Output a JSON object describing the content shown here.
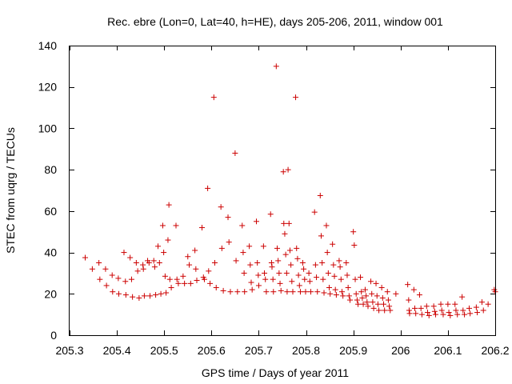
{
  "chart_data": {
    "type": "scatter",
    "title": "Rec. ebre (Lon=0, Lat=40, h=HE), days 205-206, 2011, window 001",
    "xlabel": "GPS time / Days of year 2011",
    "ylabel": "STEC from uqrg / TECUs",
    "xlim": [
      205.3,
      206.2
    ],
    "ylim": [
      0,
      140
    ],
    "xticks": [
      205.3,
      205.4,
      205.5,
      205.6,
      205.7,
      205.8,
      205.9,
      206,
      206.1,
      206.2
    ],
    "xtick_labels": [
      "205.3",
      "205.4",
      "205.5",
      "205.6",
      "205.7",
      "205.8",
      "205.9",
      "206",
      "206.1",
      "206.2"
    ],
    "yticks": [
      0,
      20,
      40,
      60,
      80,
      100,
      120,
      140
    ],
    "ytick_labels": [
      "0",
      "20",
      "40",
      "60",
      "80",
      "100",
      "120",
      "140"
    ],
    "marker": "+",
    "marker_color": "#cc0000",
    "series": [
      {
        "name": "STEC",
        "points": [
          [
            205.333,
            37.5
          ],
          [
            205.348,
            32
          ],
          [
            205.362,
            35
          ],
          [
            205.364,
            27
          ],
          [
            205.376,
            32
          ],
          [
            205.378,
            24
          ],
          [
            205.39,
            29
          ],
          [
            205.391,
            21
          ],
          [
            205.403,
            27.5
          ],
          [
            205.404,
            20
          ],
          [
            205.415,
            40
          ],
          [
            205.418,
            26
          ],
          [
            205.419,
            19.5
          ],
          [
            205.428,
            37.5
          ],
          [
            205.431,
            27
          ],
          [
            205.433,
            18.5
          ],
          [
            205.441,
            35
          ],
          [
            205.444,
            31
          ],
          [
            205.447,
            18
          ],
          [
            205.455,
            34
          ],
          [
            205.456,
            32
          ],
          [
            205.458,
            19
          ],
          [
            205.465,
            36
          ],
          [
            205.468,
            35
          ],
          [
            205.47,
            19
          ],
          [
            205.478,
            36
          ],
          [
            205.48,
            33
          ],
          [
            205.482,
            19.5
          ],
          [
            205.487,
            43
          ],
          [
            205.49,
            35
          ],
          [
            205.493,
            20
          ],
          [
            205.497,
            53
          ],
          [
            205.499,
            40
          ],
          [
            205.502,
            28.5
          ],
          [
            205.504,
            20.5
          ],
          [
            205.508,
            46
          ],
          [
            205.51,
            63
          ],
          [
            205.512,
            27
          ],
          [
            205.515,
            23
          ],
          [
            205.525,
            53
          ],
          [
            205.527,
            27
          ],
          [
            205.53,
            25
          ],
          [
            205.54,
            28.5
          ],
          [
            205.543,
            25
          ],
          [
            205.55,
            38
          ],
          [
            205.553,
            34
          ],
          [
            205.556,
            25
          ],
          [
            205.565,
            41
          ],
          [
            205.567,
            32
          ],
          [
            205.569,
            26.5
          ],
          [
            205.58,
            52
          ],
          [
            205.583,
            28
          ],
          [
            205.585,
            27
          ],
          [
            205.592,
            71
          ],
          [
            205.594,
            31
          ],
          [
            205.597,
            25
          ],
          [
            205.605,
            115
          ],
          [
            205.607,
            35
          ],
          [
            205.61,
            23
          ],
          [
            205.62,
            62
          ],
          [
            205.622,
            42
          ],
          [
            205.625,
            21.5
          ],
          [
            205.635,
            57
          ],
          [
            205.637,
            45
          ],
          [
            205.64,
            21
          ],
          [
            205.65,
            88
          ],
          [
            205.652,
            36
          ],
          [
            205.655,
            21
          ],
          [
            205.665,
            53
          ],
          [
            205.667,
            40
          ],
          [
            205.669,
            30
          ],
          [
            205.67,
            21
          ],
          [
            205.68,
            43
          ],
          [
            205.682,
            34
          ],
          [
            205.684,
            25.5
          ],
          [
            205.686,
            22
          ],
          [
            205.695,
            55
          ],
          [
            205.697,
            35
          ],
          [
            205.699,
            29
          ],
          [
            205.7,
            24
          ],
          [
            205.71,
            43
          ],
          [
            205.712,
            30
          ],
          [
            205.714,
            27
          ],
          [
            205.716,
            21
          ],
          [
            205.725,
            58.5
          ],
          [
            205.727,
            35
          ],
          [
            205.728,
            33
          ],
          [
            205.73,
            27
          ],
          [
            205.731,
            21
          ],
          [
            205.737,
            130
          ],
          [
            205.739,
            42
          ],
          [
            205.741,
            36
          ],
          [
            205.743,
            30
          ],
          [
            205.745,
            25
          ],
          [
            205.747,
            21.5
          ],
          [
            205.752,
            79
          ],
          [
            205.753,
            54
          ],
          [
            205.755,
            49
          ],
          [
            205.757,
            39
          ],
          [
            205.759,
            30
          ],
          [
            205.76,
            21
          ],
          [
            205.762,
            80
          ],
          [
            205.764,
            54
          ],
          [
            205.766,
            41
          ],
          [
            205.768,
            34
          ],
          [
            205.77,
            26
          ],
          [
            205.772,
            21
          ],
          [
            205.778,
            115
          ],
          [
            205.78,
            42
          ],
          [
            205.782,
            37
          ],
          [
            205.784,
            29
          ],
          [
            205.786,
            24
          ],
          [
            205.788,
            21
          ],
          [
            205.793,
            35
          ],
          [
            205.795,
            32
          ],
          [
            205.797,
            27
          ],
          [
            205.799,
            21
          ],
          [
            205.806,
            30
          ],
          [
            205.808,
            26
          ],
          [
            205.81,
            21
          ],
          [
            205.818,
            59.5
          ],
          [
            205.82,
            34
          ],
          [
            205.822,
            28
          ],
          [
            205.824,
            21
          ],
          [
            205.83,
            67.5
          ],
          [
            205.832,
            48
          ],
          [
            205.834,
            35
          ],
          [
            205.836,
            27
          ],
          [
            205.838,
            20.5
          ],
          [
            205.843,
            53
          ],
          [
            205.845,
            40
          ],
          [
            205.847,
            30
          ],
          [
            205.849,
            23
          ],
          [
            205.851,
            20
          ],
          [
            205.856,
            44
          ],
          [
            205.858,
            34
          ],
          [
            205.86,
            28.5
          ],
          [
            205.862,
            22
          ],
          [
            205.864,
            19.5
          ],
          [
            205.87,
            36
          ],
          [
            205.872,
            33
          ],
          [
            205.874,
            27
          ],
          [
            205.876,
            21
          ],
          [
            205.878,
            19
          ],
          [
            205.885,
            35
          ],
          [
            205.887,
            29
          ],
          [
            205.889,
            23
          ],
          [
            205.891,
            19
          ],
          [
            205.893,
            17
          ],
          [
            205.9,
            50
          ],
          [
            205.902,
            43.5
          ],
          [
            205.904,
            27
          ],
          [
            205.906,
            20
          ],
          [
            205.908,
            17
          ],
          [
            205.91,
            15
          ],
          [
            205.915,
            28
          ],
          [
            205.917,
            21
          ],
          [
            205.919,
            18
          ],
          [
            205.921,
            15
          ],
          [
            205.925,
            22
          ],
          [
            205.927,
            19
          ],
          [
            205.929,
            16
          ],
          [
            205.931,
            14
          ],
          [
            205.937,
            26
          ],
          [
            205.939,
            20
          ],
          [
            205.941,
            16
          ],
          [
            205.943,
            13
          ],
          [
            205.948,
            25
          ],
          [
            205.95,
            19
          ],
          [
            205.952,
            15
          ],
          [
            205.954,
            12
          ],
          [
            205.96,
            23
          ],
          [
            205.962,
            18
          ],
          [
            205.964,
            15
          ],
          [
            205.966,
            12
          ],
          [
            205.972,
            21
          ],
          [
            205.974,
            17
          ],
          [
            205.976,
            14
          ],
          [
            205.978,
            12
          ],
          [
            205.99,
            20
          ],
          [
            206.015,
            24.5
          ],
          [
            206.017,
            17
          ],
          [
            206.018,
            12
          ],
          [
            206.019,
            10.5
          ],
          [
            206.028,
            22
          ],
          [
            206.03,
            13
          ],
          [
            206.032,
            10.5
          ],
          [
            206.04,
            19.5
          ],
          [
            206.043,
            13
          ],
          [
            206.045,
            10
          ],
          [
            206.055,
            14
          ],
          [
            206.057,
            11
          ],
          [
            206.06,
            9.5
          ],
          [
            206.07,
            14
          ],
          [
            206.072,
            11.5
          ],
          [
            206.074,
            10
          ],
          [
            206.085,
            15
          ],
          [
            206.087,
            12
          ],
          [
            206.09,
            10
          ],
          [
            206.1,
            15
          ],
          [
            206.102,
            11
          ],
          [
            206.105,
            9.5
          ],
          [
            206.115,
            15
          ],
          [
            206.117,
            12
          ],
          [
            206.12,
            10
          ],
          [
            206.13,
            18.5
          ],
          [
            206.132,
            12
          ],
          [
            206.135,
            10
          ],
          [
            206.145,
            13
          ],
          [
            206.147,
            10.5
          ],
          [
            206.16,
            13.5
          ],
          [
            206.162,
            11
          ],
          [
            206.172,
            16
          ],
          [
            206.175,
            12
          ],
          [
            206.185,
            15
          ],
          [
            206.198,
            22
          ],
          [
            206.2,
            21
          ]
        ]
      }
    ]
  }
}
